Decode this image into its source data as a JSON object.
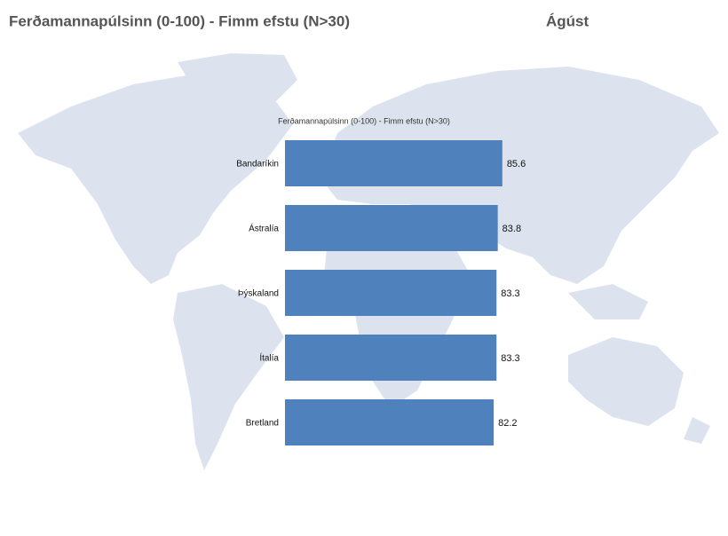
{
  "header": {
    "title": "Ferðamannapúlsinn (0-100) - Fimm efstu (N>30)",
    "month": "Ágúst"
  },
  "chart_data": {
    "type": "hbar",
    "title": "Ferðamannapúlsinn (0-100) - Fimm efstu (N>30)",
    "categories": [
      "Bandaríkin",
      "Ástralía",
      "Þýskaland",
      "Ítalía",
      "Bretland"
    ],
    "values": [
      85.6,
      83.8,
      83.3,
      83.3,
      82.2
    ],
    "color": "#4f81bd",
    "xlim": [
      0,
      100
    ]
  }
}
